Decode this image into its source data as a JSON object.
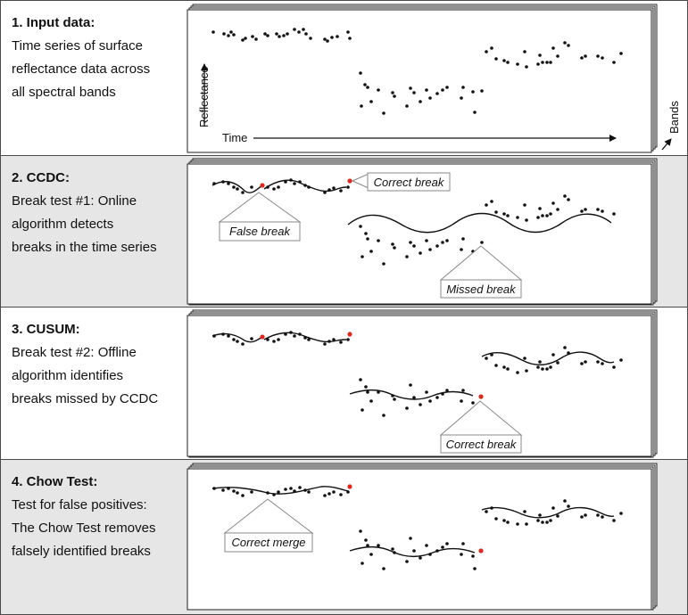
{
  "panels": [
    {
      "title": "1. Input data:",
      "lines": [
        "Time series of surface",
        "reflectance data across",
        "all spectral bands"
      ],
      "axes": {
        "x_label": "Time",
        "y_label": "Reflectance",
        "z_label": "Bands"
      },
      "callouts": []
    },
    {
      "title": "2. CCDC:",
      "lines": [
        "Break test #1: Online",
        "algorithm detects",
        "breaks in the time series"
      ],
      "callouts": [
        "False break",
        "Correct break",
        "Missed break"
      ]
    },
    {
      "title": "3. CUSUM:",
      "lines": [
        "Break test #2: Offline",
        "algorithm identifies",
        "breaks missed by CCDC"
      ],
      "callouts": [
        "Correct break"
      ]
    },
    {
      "title": "4. Chow Test:",
      "lines": [
        "Test for false positives:",
        "The Chow Test removes",
        "falsely identified breaks"
      ],
      "callouts": [
        "Correct merge"
      ]
    }
  ],
  "colors": {
    "break_marker": "#e0281e",
    "point": "#111111",
    "shaded_panel": "#e6e6e6"
  }
}
